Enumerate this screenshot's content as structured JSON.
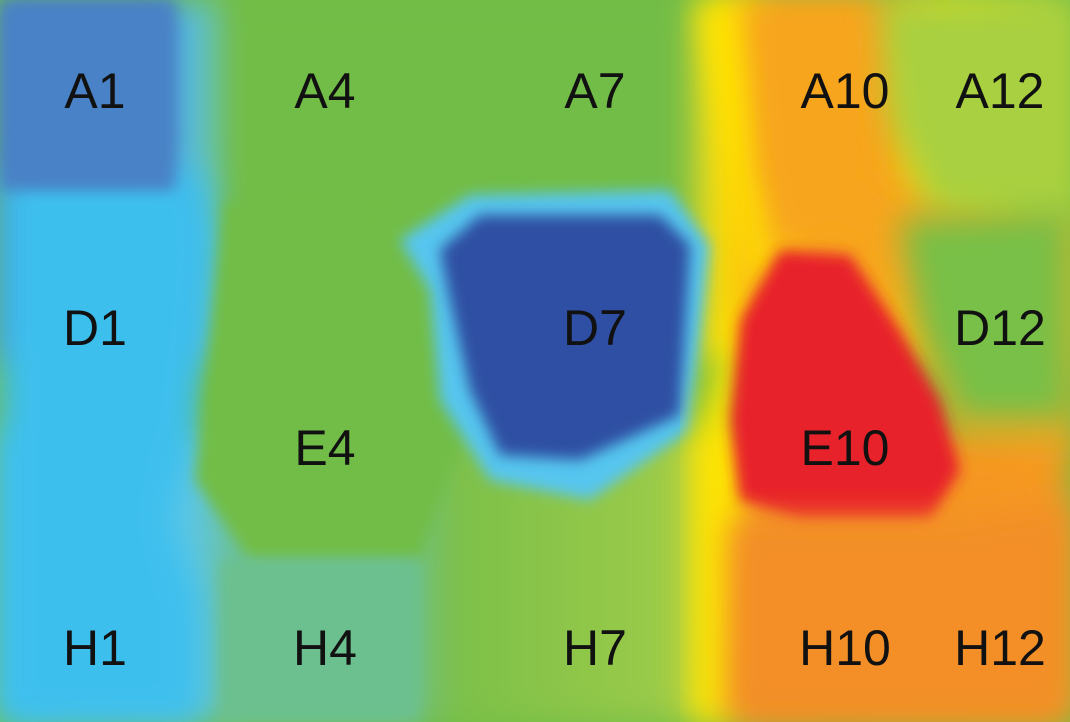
{
  "chart_data": {
    "type": "heatmap",
    "title": "",
    "xlabel": "",
    "ylabel": "",
    "grid": false,
    "legend": false,
    "points": [
      {
        "label": "A1",
        "row": "A",
        "col": 1,
        "color": "#4a82c6"
      },
      {
        "label": "A4",
        "row": "A",
        "col": 4,
        "color": "#72bd46"
      },
      {
        "label": "A7",
        "row": "A",
        "col": 7,
        "color": "#72bd46"
      },
      {
        "label": "A10",
        "row": "A",
        "col": 10,
        "color": "#f7a51c"
      },
      {
        "label": "A12",
        "row": "A",
        "col": 12,
        "color": "#a9d03f"
      },
      {
        "label": "D1",
        "row": "D",
        "col": 1,
        "color": "#3eb8ec"
      },
      {
        "label": "D7",
        "row": "D",
        "col": 7,
        "color": "#2d4fa3"
      },
      {
        "label": "D12",
        "row": "D",
        "col": 12,
        "color": "#78c046"
      },
      {
        "label": "E4",
        "row": "E",
        "col": 4,
        "color": "#72bd46"
      },
      {
        "label": "E10",
        "row": "E",
        "col": 10,
        "color": "#e8242a"
      },
      {
        "label": "H1",
        "row": "H",
        "col": 1,
        "color": "#44c6f1"
      },
      {
        "label": "H4",
        "row": "H",
        "col": 4,
        "color": "#6cc08f"
      },
      {
        "label": "H7",
        "row": "H",
        "col": 7,
        "color": "#9ccb48"
      },
      {
        "label": "H10",
        "row": "H",
        "col": 10,
        "color": "#f38f25"
      },
      {
        "label": "H12",
        "row": "H",
        "col": 12,
        "color": "#f59a22"
      }
    ]
  }
}
